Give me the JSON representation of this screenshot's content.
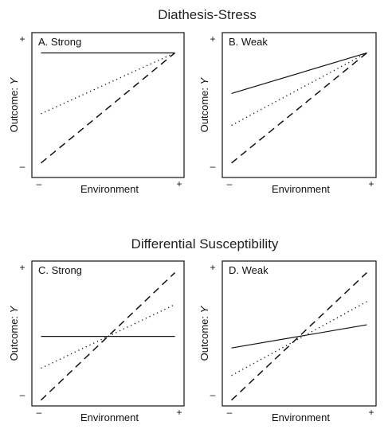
{
  "sections": [
    {
      "title": "Diathesis-Stress"
    },
    {
      "title": "Differential Susceptibility"
    }
  ],
  "chart_data": [
    {
      "type": "line",
      "panel": "A. Strong",
      "xlabel": "Environment",
      "ylabel_text": "Outcome: ",
      "ylabel_var": "Y",
      "x_tick_labels": [
        "–",
        "+"
      ],
      "y_tick_labels": [
        "+",
        "–"
      ],
      "xlim": [
        0,
        1
      ],
      "ylim": [
        0,
        1
      ],
      "series": [
        {
          "style": "solid",
          "x": [
            0.06,
            0.94
          ],
          "y": [
            0.86,
            0.86
          ]
        },
        {
          "style": "dotted",
          "x": [
            0.06,
            0.94
          ],
          "y": [
            0.44,
            0.86
          ]
        },
        {
          "style": "dashed",
          "x": [
            0.06,
            0.94
          ],
          "y": [
            0.1,
            0.86
          ]
        }
      ]
    },
    {
      "type": "line",
      "panel": "B. Weak",
      "xlabel": "Environment",
      "ylabel_text": "Outcome: ",
      "ylabel_var": "Y",
      "x_tick_labels": [
        "–",
        "+"
      ],
      "y_tick_labels": [
        "+",
        "–"
      ],
      "xlim": [
        0,
        1
      ],
      "ylim": [
        0,
        1
      ],
      "series": [
        {
          "style": "solid",
          "x": [
            0.06,
            0.94
          ],
          "y": [
            0.58,
            0.86
          ]
        },
        {
          "style": "dotted",
          "x": [
            0.06,
            0.94
          ],
          "y": [
            0.36,
            0.86
          ]
        },
        {
          "style": "dashed",
          "x": [
            0.06,
            0.94
          ],
          "y": [
            0.1,
            0.86
          ]
        }
      ]
    },
    {
      "type": "line",
      "panel": "C. Strong",
      "xlabel": "Environment",
      "ylabel_text": "Outcome: ",
      "ylabel_var": "Y",
      "x_tick_labels": [
        "–",
        "+"
      ],
      "y_tick_labels": [
        "+",
        "–"
      ],
      "xlim": [
        0,
        1
      ],
      "ylim": [
        0,
        1
      ],
      "series": [
        {
          "style": "solid",
          "x": [
            0.06,
            0.94
          ],
          "y": [
            0.48,
            0.48
          ]
        },
        {
          "style": "dotted",
          "x": [
            0.06,
            0.94
          ],
          "y": [
            0.26,
            0.7
          ]
        },
        {
          "style": "dashed",
          "x": [
            0.06,
            0.94
          ],
          "y": [
            0.04,
            0.92
          ]
        }
      ]
    },
    {
      "type": "line",
      "panel": "D. Weak",
      "xlabel": "Environment",
      "ylabel_text": "Outcome: ",
      "ylabel_var": "Y",
      "x_tick_labels": [
        "–",
        "+"
      ],
      "y_tick_labels": [
        "+",
        "–"
      ],
      "xlim": [
        0,
        1
      ],
      "ylim": [
        0,
        1
      ],
      "series": [
        {
          "style": "solid",
          "x": [
            0.06,
            0.94
          ],
          "y": [
            0.4,
            0.56
          ]
        },
        {
          "style": "dotted",
          "x": [
            0.06,
            0.94
          ],
          "y": [
            0.21,
            0.72
          ]
        },
        {
          "style": "dashed",
          "x": [
            0.06,
            0.94
          ],
          "y": [
            0.04,
            0.92
          ]
        }
      ]
    }
  ]
}
